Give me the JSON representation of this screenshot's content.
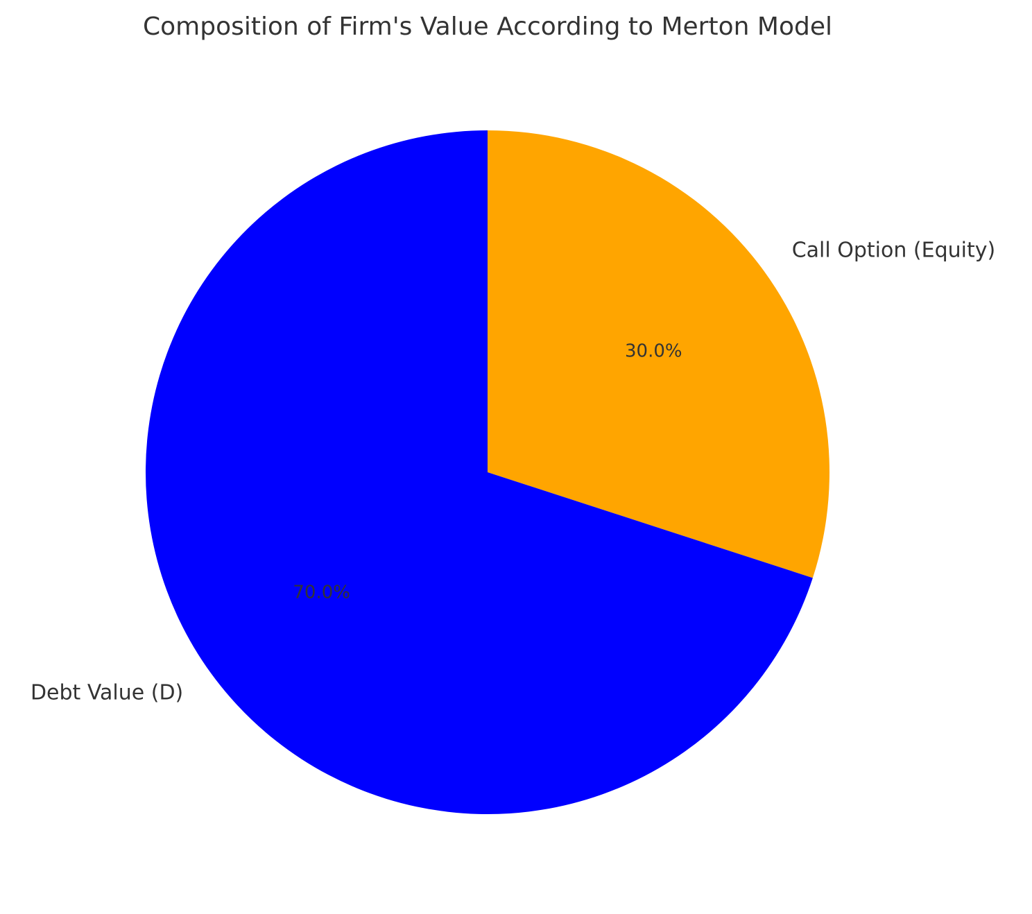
{
  "chart_data": {
    "type": "pie",
    "title": "Composition of Firm's Value According to Merton Model",
    "start_angle_deg": 90,
    "direction": "clockwise",
    "slices": [
      {
        "label": "Call Option (Equity)",
        "value": 30.0,
        "pct_label": "30.0%",
        "color": "#FFA500"
      },
      {
        "label": "Debt Value (D)",
        "value": 70.0,
        "pct_label": "70.0%",
        "color": "#0000FF"
      }
    ]
  }
}
